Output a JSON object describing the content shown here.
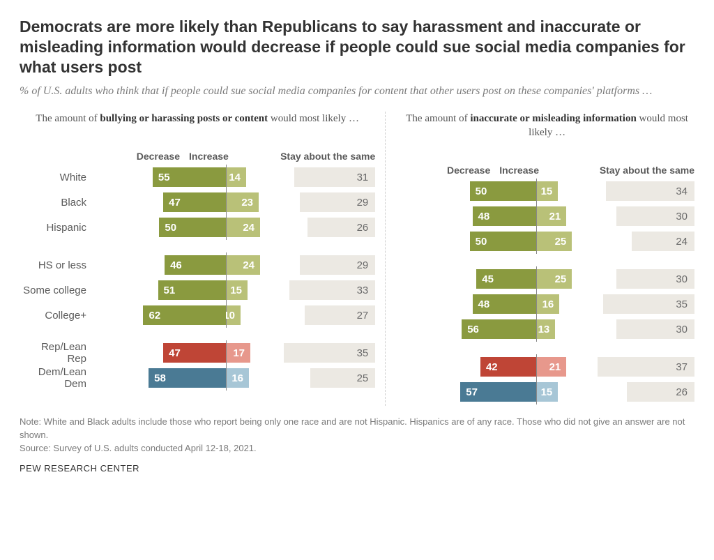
{
  "title": "Democrats are more likely than Republicans to say harassment and inaccurate or misleading information would decrease if people could sue social media companies for what users post",
  "subtitle": "% of U.S. adults who think that if people could sue social media companies for content that other users post on these companies' platforms …",
  "panels": {
    "left": {
      "title_pre": "The amount of ",
      "title_bold": "bullying or harassing posts or content",
      "title_post": " would most likely …"
    },
    "right": {
      "title_pre": "The amount of ",
      "title_bold": "inaccurate or misleading information",
      "title_post": " would most likely …"
    }
  },
  "headers": {
    "decrease": "Decrease",
    "increase": "Increase",
    "same": "Stay about the same"
  },
  "colors": {
    "green_dark": "#8a9a3f",
    "green_light": "#b9c178",
    "red_dark": "#bf4536",
    "red_light": "#e7988c",
    "blue_dark": "#4a7a94",
    "blue_light": "#a7c6d6",
    "grey_bar": "#ece9e3",
    "background": "#ffffff"
  },
  "scale": {
    "dec_max": 68,
    "inc_max": 30,
    "same_max": 40
  },
  "groups": [
    {
      "rows": [
        {
          "label": "White",
          "palette": "green",
          "left": {
            "dec": 55,
            "inc": 14,
            "same": 31
          },
          "right": {
            "dec": 50,
            "inc": 15,
            "same": 34
          }
        },
        {
          "label": "Black",
          "palette": "green",
          "left": {
            "dec": 47,
            "inc": 23,
            "same": 29
          },
          "right": {
            "dec": 48,
            "inc": 21,
            "same": 30
          }
        },
        {
          "label": "Hispanic",
          "palette": "green",
          "left": {
            "dec": 50,
            "inc": 24,
            "same": 26
          },
          "right": {
            "dec": 50,
            "inc": 25,
            "same": 24
          }
        }
      ]
    },
    {
      "rows": [
        {
          "label": "HS or less",
          "palette": "green",
          "left": {
            "dec": 46,
            "inc": 24,
            "same": 29
          },
          "right": {
            "dec": 45,
            "inc": 25,
            "same": 30
          }
        },
        {
          "label": "Some college",
          "palette": "green",
          "left": {
            "dec": 51,
            "inc": 15,
            "same": 33
          },
          "right": {
            "dec": 48,
            "inc": 16,
            "same": 35
          }
        },
        {
          "label": "College+",
          "palette": "green",
          "left": {
            "dec": 62,
            "inc": 10,
            "same": 27
          },
          "right": {
            "dec": 56,
            "inc": 13,
            "same": 30
          }
        }
      ]
    },
    {
      "rows": [
        {
          "label": "Rep/Lean Rep",
          "palette": "red",
          "left": {
            "dec": 47,
            "inc": 17,
            "same": 35
          },
          "right": {
            "dec": 42,
            "inc": 21,
            "same": 37
          }
        },
        {
          "label": "Dem/Lean Dem",
          "palette": "blue",
          "left": {
            "dec": 58,
            "inc": 16,
            "same": 25
          },
          "right": {
            "dec": 57,
            "inc": 15,
            "same": 26
          }
        }
      ]
    }
  ],
  "note": "Note: White and Black adults include those who report being only one race and are not Hispanic. Hispanics are of any race. Those who did not give an answer are not shown.",
  "source": "Source: Survey of U.S. adults conducted April 12-18, 2021.",
  "footer": "PEW RESEARCH CENTER"
}
